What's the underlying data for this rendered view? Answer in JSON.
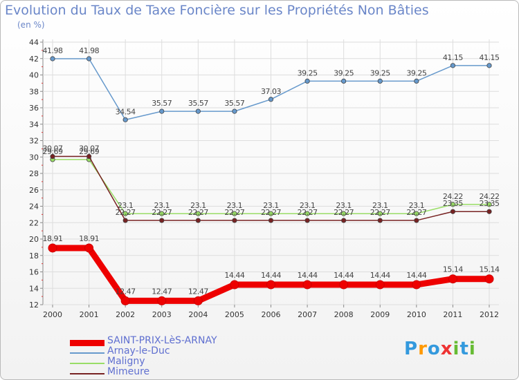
{
  "chart_data": {
    "type": "line",
    "title": "Evolution du Taux de Taxe Foncière sur les Propriétés Non Bâties",
    "ylabel": "(en %)",
    "xlabel": "",
    "categories": [
      "2000",
      "2001",
      "2002",
      "2003",
      "2004",
      "2005",
      "2006",
      "2007",
      "2008",
      "2009",
      "2010",
      "2011",
      "2012"
    ],
    "ylim": [
      12,
      44
    ],
    "yticks": [
      12,
      14,
      16,
      18,
      20,
      22,
      24,
      26,
      28,
      30,
      32,
      34,
      36,
      38,
      40,
      42,
      44
    ],
    "grid": true,
    "legend_position": "bottom-left",
    "series": [
      {
        "name": "SAINT-PRIX-LèS-ARNAY",
        "color": "#ee0000",
        "values": [
          18.91,
          18.91,
          12.47,
          12.47,
          12.47,
          14.44,
          14.44,
          14.44,
          14.44,
          14.44,
          14.44,
          15.14,
          15.14
        ],
        "labels": [
          "18.91",
          "18.91",
          "12.47",
          "12.47",
          "12.47",
          "14.44",
          "14.44",
          "14.44",
          "14.44",
          "14.44",
          "14.44",
          "15.14",
          "15.14"
        ]
      },
      {
        "name": "Arnay-le-Duc",
        "color": "#6699cc",
        "values": [
          41.98,
          41.98,
          34.54,
          35.57,
          35.57,
          35.57,
          37.03,
          39.25,
          39.25,
          39.25,
          39.25,
          41.15,
          41.15
        ],
        "labels": [
          "41.98",
          "41.98",
          "34.54",
          "35.57",
          "35.57",
          "35.57",
          "37.03",
          "39.25",
          "39.25",
          "39.25",
          "39.25",
          "41.15",
          "41.15"
        ]
      },
      {
        "name": "Maligny",
        "color": "#99dd66",
        "values": [
          29.69,
          29.69,
          23.1,
          23.1,
          23.1,
          23.1,
          23.1,
          23.1,
          23.1,
          23.1,
          23.1,
          24.22,
          24.22
        ],
        "labels": [
          "29.69",
          "29.69",
          "23.1",
          "23.1",
          "23.1",
          "23.1",
          "23.1",
          "23.1",
          "23.1",
          "23.1",
          "23.1",
          "24.22",
          "24.22"
        ]
      },
      {
        "name": "Mimeure",
        "color": "#772222",
        "values": [
          30.07,
          30.07,
          22.27,
          22.27,
          22.27,
          22.27,
          22.27,
          22.27,
          22.27,
          22.27,
          22.27,
          23.35,
          23.35
        ],
        "labels": [
          "30.07",
          "30.07",
          "22.27",
          "22.27",
          "22.27",
          "22.27",
          "22.27",
          "22.27",
          "22.27",
          "22.27",
          "22.27",
          "23.35",
          "23.35"
        ]
      }
    ]
  },
  "logo": {
    "text": "Proxiti",
    "letters": [
      {
        "ch": "P",
        "color": "#3399dd"
      },
      {
        "ch": "r",
        "color": "#ff9900"
      },
      {
        "ch": "o",
        "color": "#3399dd"
      },
      {
        "ch": "x",
        "color": "#ee3333"
      },
      {
        "ch": "i",
        "color": "#66bb33"
      },
      {
        "ch": "t",
        "color": "#3399dd"
      },
      {
        "ch": "i",
        "color": "#66bb33"
      }
    ]
  }
}
